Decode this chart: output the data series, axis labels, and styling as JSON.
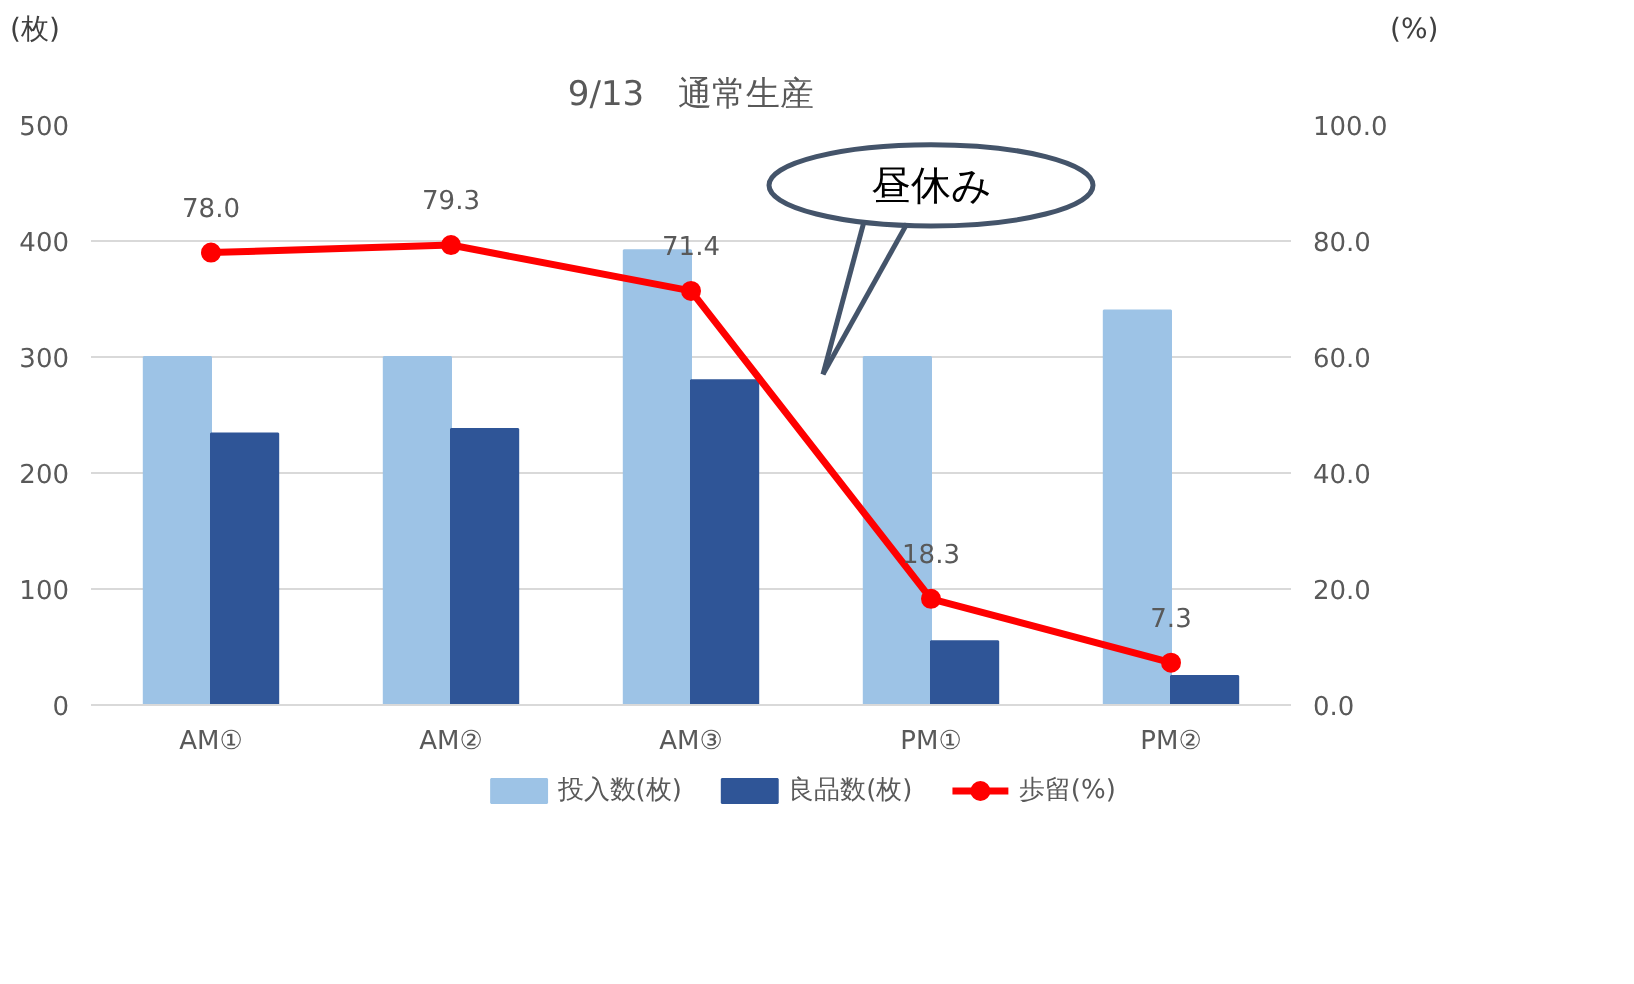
{
  "chart_data": {
    "type": "bar",
    "title": "9/13　通常生産",
    "ylabel": "(枚)",
    "y2label": "(%)",
    "categories": [
      "AM①",
      "AM②",
      "AM③",
      "PM①",
      "PM②"
    ],
    "series": [
      {
        "name": "投入数(枚)",
        "color": "#9dc3e6",
        "values": [
          300,
          300,
          392,
          300,
          340
        ]
      },
      {
        "name": "良品数(枚)",
        "color": "#2f5597",
        "values": [
          234,
          238,
          280,
          55,
          25
        ]
      },
      {
        "name": "歩留(%)",
        "type": "line",
        "axis": "y2",
        "color": "#ff0000",
        "marker": "circle",
        "values": [
          78.0,
          79.3,
          71.4,
          18.3,
          7.3
        ],
        "value_labels": [
          "78.0",
          "79.3",
          "71.4",
          "18.3",
          "7.3"
        ]
      }
    ],
    "ylim": [
      0,
      500
    ],
    "yticks": [
      0,
      100,
      200,
      300,
      400,
      500
    ],
    "y2lim": [
      0,
      100
    ],
    "y2ticks": [
      {
        "value": 0,
        "label": "0.0"
      },
      {
        "value": 20,
        "label": "20.0"
      },
      {
        "value": 40,
        "label": "40.0"
      },
      {
        "value": 60,
        "label": "60.0"
      },
      {
        "value": 80,
        "label": "80.0"
      },
      {
        "value": 100,
        "label": "100.0"
      }
    ],
    "annotations": [
      "昼休み"
    ],
    "grid": "y",
    "legend": "bottom"
  }
}
